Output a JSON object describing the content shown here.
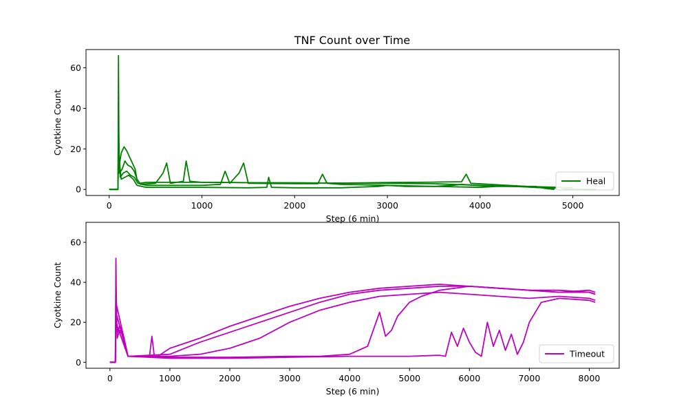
{
  "figure": {
    "title": "TNF Count over Time"
  },
  "chart_data": [
    {
      "type": "line",
      "title": "TNF Count over Time",
      "xlabel": "Step (6 min)",
      "ylabel": "Cyotkine Count",
      "xlim": [
        -250,
        5500
      ],
      "ylim": [
        -3,
        69
      ],
      "xticks": [
        0,
        1000,
        2000,
        3000,
        4000,
        5000
      ],
      "yticks": [
        0,
        20,
        40,
        60
      ],
      "grid": false,
      "legend": {
        "placement": "lower-right",
        "entries": [
          "Heal"
        ]
      },
      "color": "#008000",
      "series": [
        {
          "name": "Heal",
          "x": [
            0,
            95,
            100,
            105,
            110,
            130,
            160,
            190,
            220,
            250,
            280,
            300,
            330,
            400,
            600,
            800,
            1000,
            1500,
            2000,
            2500,
            3000,
            3500,
            4000,
            4500,
            4700
          ],
          "y": [
            0,
            0,
            66,
            28,
            12,
            18,
            21,
            19,
            16,
            13,
            10,
            5,
            3,
            3.5,
            3.5,
            3.5,
            3.5,
            3.3,
            3.2,
            3.1,
            3.0,
            2.8,
            2.0,
            1.2,
            0.8
          ]
        },
        {
          "name": "",
          "x": [
            0,
            95,
            100,
            110,
            140,
            170,
            200,
            240,
            270,
            300,
            340,
            500,
            580,
            620,
            660,
            800,
            830,
            870,
            1000,
            1500,
            2000,
            2500,
            3000,
            3500,
            3800,
            3850,
            3900,
            4500,
            5000
          ],
          "y": [
            0,
            0,
            30,
            8,
            10,
            14,
            12,
            11,
            9,
            5,
            2.5,
            3,
            8,
            13,
            3,
            4,
            14,
            4,
            3.5,
            3.3,
            3.2,
            3.1,
            3.4,
            3.6,
            3.8,
            7.5,
            3,
            1.5,
            0.8
          ]
        },
        {
          "name": "",
          "x": [
            0,
            95,
            100,
            120,
            150,
            190,
            230,
            270,
            310,
            400,
            1000,
            1200,
            1250,
            1300,
            1400,
            1450,
            1500,
            2000,
            2250,
            2300,
            2350,
            2500,
            3000,
            3500,
            4000,
            4300,
            4500,
            4800,
            4850,
            4900,
            5000,
            5250
          ],
          "y": [
            0,
            0,
            22,
            6,
            8,
            9,
            7,
            6,
            3,
            2,
            2,
            2.5,
            9,
            3,
            8,
            13,
            3,
            2.8,
            2.8,
            7.5,
            3,
            2.5,
            2,
            1.5,
            1,
            1.8,
            1.2,
            0.5,
            1.2,
            0.3,
            0.2,
            0
          ]
        },
        {
          "name": "",
          "x": [
            0,
            95,
            100,
            130,
            170,
            210,
            260,
            300,
            400,
            1000,
            1500,
            1700,
            1720,
            1750,
            2000,
            2500,
            2900,
            3000,
            3200,
            3500,
            3700,
            3800,
            4000,
            4200,
            4600,
            4700,
            4800
          ],
          "y": [
            0,
            0,
            18,
            5,
            6,
            7,
            5,
            2,
            1,
            1,
            0.8,
            1,
            6,
            1,
            0.8,
            0.8,
            1.5,
            2,
            1.5,
            1.5,
            2,
            2.5,
            1.8,
            1.5,
            1.5,
            0.5,
            0
          ]
        }
      ]
    },
    {
      "type": "line",
      "title": "",
      "xlabel": "Step (6 min)",
      "ylabel": "Cyotkine Count",
      "xlim": [
        -400,
        8500
      ],
      "ylim": [
        -3,
        70
      ],
      "xticks": [
        0,
        1000,
        2000,
        3000,
        4000,
        5000,
        6000,
        7000,
        8000
      ],
      "yticks": [
        0,
        20,
        40,
        60
      ],
      "grid": false,
      "legend": {
        "placement": "lower-right",
        "entries": [
          "Timeout"
        ]
      },
      "color": "#BF00BF",
      "series": [
        {
          "name": "Timeout",
          "x": [
            0,
            90,
            100,
            110,
            130,
            160,
            190,
            220,
            250,
            300,
            500,
            800,
            1000,
            1500,
            2000,
            2500,
            3000,
            3500,
            4000,
            4500,
            5000,
            5500,
            6000,
            6500,
            7000,
            7500,
            8000,
            8100
          ],
          "y": [
            0,
            0,
            52,
            20,
            15,
            18,
            17,
            14,
            10,
            3,
            3,
            3,
            7,
            12,
            18,
            23,
            28,
            32,
            35,
            37,
            38,
            39,
            38,
            37,
            36,
            35,
            35,
            34
          ]
        },
        {
          "name": "",
          "x": [
            0,
            90,
            100,
            120,
            160,
            200,
            260,
            300,
            660,
            700,
            740,
            1000,
            1500,
            2000,
            2500,
            3000,
            3500,
            4000,
            4500,
            5000,
            5500,
            6000,
            6500,
            7000,
            7500,
            8000,
            8100
          ],
          "y": [
            0,
            0,
            40,
            12,
            16,
            14,
            8,
            3,
            3,
            13,
            3,
            3,
            4,
            7,
            12,
            20,
            26,
            30,
            33,
            34,
            35,
            34,
            33,
            32,
            33,
            32,
            31
          ]
        },
        {
          "name": "",
          "x": [
            0,
            90,
            100,
            300,
            1000,
            2000,
            3000,
            3500,
            4000,
            4300,
            4500,
            4600,
            4700,
            4800,
            5000,
            5200,
            5500,
            6000,
            6500,
            7000,
            7500,
            8000,
            8100
          ],
          "y": [
            0,
            0,
            30,
            3,
            2.5,
            2.5,
            3,
            3,
            4,
            8,
            25,
            13,
            16,
            23,
            30,
            33,
            36,
            38,
            37,
            36,
            36,
            35,
            34
          ]
        },
        {
          "name": "",
          "x": [
            0,
            90,
            100,
            300,
            1000,
            2000,
            3000,
            4000,
            4500,
            5000,
            5500,
            5600,
            5700,
            5800,
            5900,
            6000,
            6100,
            6200,
            6300,
            6400,
            6500,
            6600,
            6700,
            6800,
            6900,
            7000,
            7200,
            7500,
            8000,
            8100
          ],
          "y": [
            0,
            0,
            25,
            3,
            2,
            2,
            2.5,
            3,
            3,
            3,
            3.5,
            3,
            15,
            8,
            17,
            10,
            5,
            3,
            20,
            8,
            16,
            6,
            14,
            4,
            10,
            20,
            30,
            32,
            31,
            30
          ]
        },
        {
          "name": "",
          "x": [
            0,
            90,
            100,
            300,
            1000,
            1500,
            2000,
            2500,
            3000,
            3500,
            4000,
            4500,
            5000,
            5500,
            6000,
            6500,
            7000,
            7500,
            8000,
            8100
          ],
          "y": [
            0,
            0,
            20,
            3,
            4,
            10,
            15,
            20,
            25,
            30,
            34,
            36,
            37,
            38,
            38,
            37,
            36,
            35,
            36,
            35
          ]
        }
      ]
    }
  ]
}
